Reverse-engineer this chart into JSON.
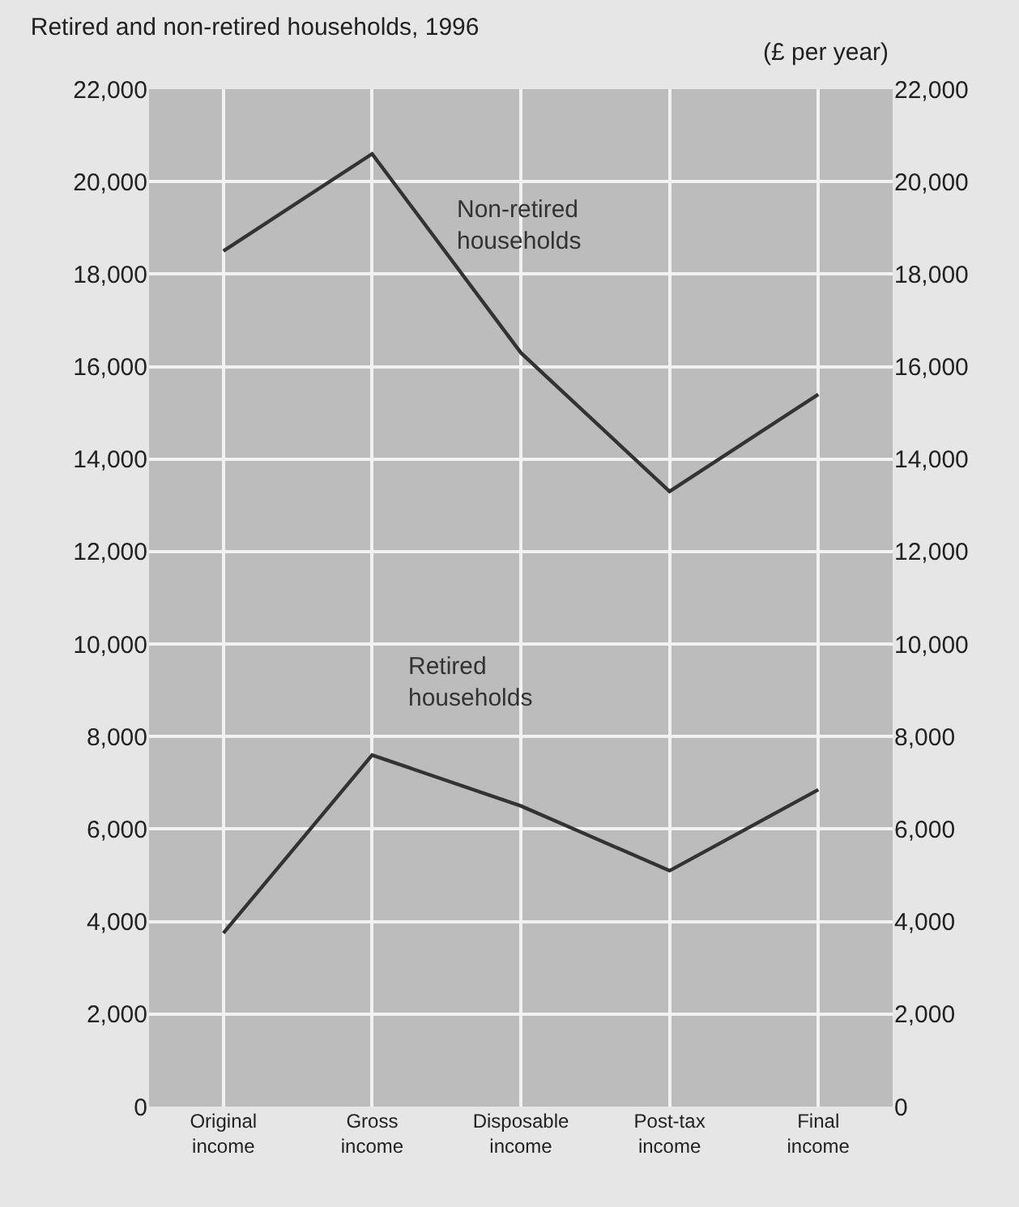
{
  "chart_data": {
    "type": "line",
    "title": "Retired and non-retired households, 1996",
    "annotations": [
      "(£ per year)"
    ],
    "categories": [
      "Original income",
      "Gross income",
      "Disposable income",
      "Post-tax income",
      "Final income"
    ],
    "series": [
      {
        "name": "Non-retired households",
        "color": "#333333",
        "values": [
          18500,
          20600,
          16300,
          13300,
          15400
        ]
      },
      {
        "name": "Retired households",
        "color": "#333333",
        "values": [
          3750,
          7600,
          6500,
          5100,
          6850
        ]
      }
    ],
    "ylim": [
      0,
      22000
    ],
    "yticks": [
      {
        "value": 0,
        "label": "0"
      },
      {
        "value": 2000,
        "label": "2,000"
      },
      {
        "value": 4000,
        "label": "4,000"
      },
      {
        "value": 6000,
        "label": "6,000"
      },
      {
        "value": 8000,
        "label": "8,000"
      },
      {
        "value": 10000,
        "label": "10,000"
      },
      {
        "value": 12000,
        "label": "12,000"
      },
      {
        "value": 14000,
        "label": "14,000"
      },
      {
        "value": 16000,
        "label": "16,000"
      },
      {
        "value": 18000,
        "label": "18,000"
      },
      {
        "value": 20000,
        "label": "20,000"
      },
      {
        "value": 22000,
        "label": "22,000"
      }
    ],
    "y2lim": [
      0,
      22000
    ],
    "y2ticks": [
      {
        "value": 0,
        "label": "0"
      },
      {
        "value": 2000,
        "label": "2,000"
      },
      {
        "value": 4000,
        "label": "4,000"
      },
      {
        "value": 6000,
        "label": "6,000"
      },
      {
        "value": 8000,
        "label": "8,000"
      },
      {
        "value": 10000,
        "label": "10,000"
      },
      {
        "value": 12000,
        "label": "12,000"
      },
      {
        "value": 14000,
        "label": "14,000"
      },
      {
        "value": 16000,
        "label": "16,000"
      },
      {
        "value": 18000,
        "label": "18,000"
      },
      {
        "value": 20000,
        "label": "20,000"
      },
      {
        "value": 22000,
        "label": "22,000"
      }
    ],
    "grid": true,
    "legend": false,
    "marker": "none",
    "line_style": "solid"
  }
}
